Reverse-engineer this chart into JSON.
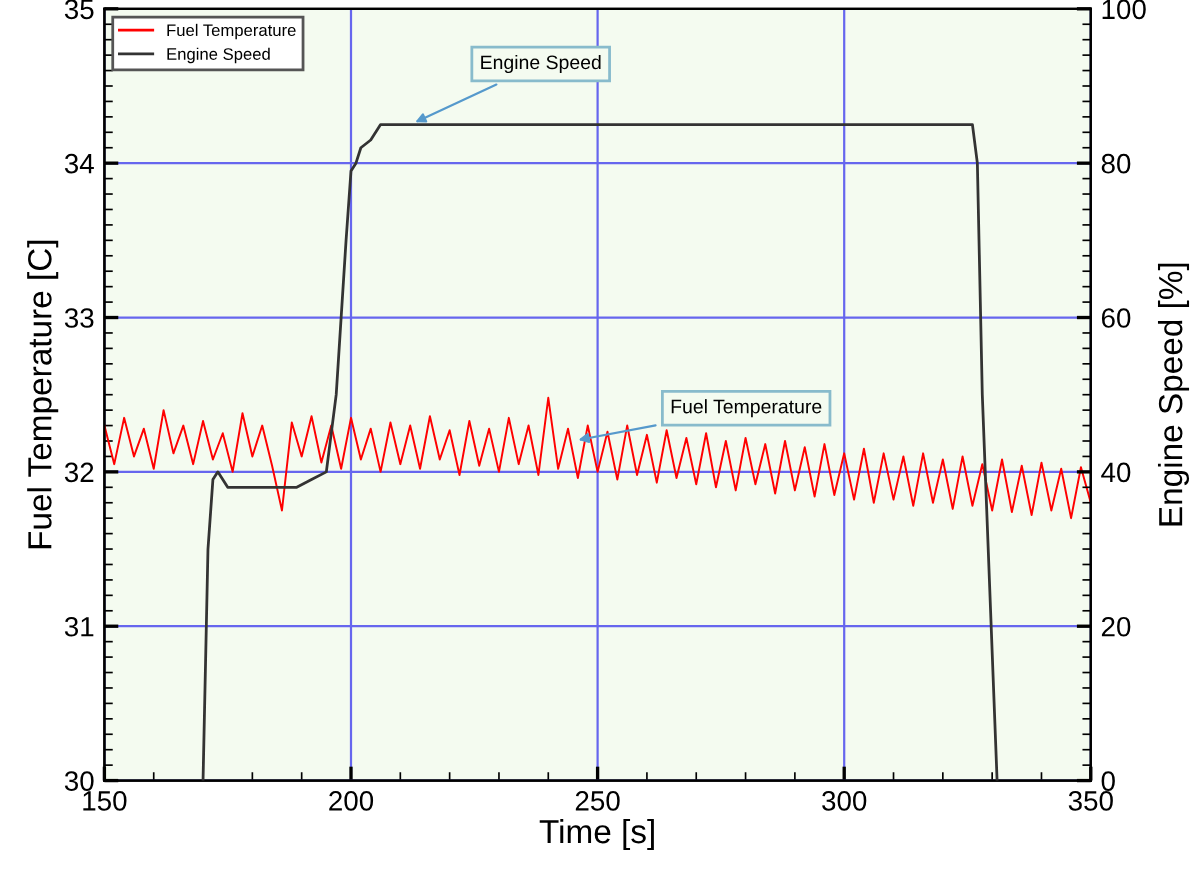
{
  "chart_data": {
    "type": "line",
    "xlabel": "Time [s]",
    "ylabel": "Fuel Temperature [C]",
    "y2label": "Engine Speed [%]",
    "series": [
      {
        "name": "Fuel Temperature",
        "color": "#ff0000",
        "x": [
          150,
          152,
          154,
          156,
          158,
          160,
          162,
          164,
          166,
          168,
          170,
          172,
          174,
          176,
          178,
          180,
          182,
          184,
          186,
          188,
          190,
          192,
          194,
          196,
          198,
          200,
          202,
          204,
          206,
          208,
          210,
          212,
          214,
          216,
          218,
          220,
          222,
          224,
          226,
          228,
          230,
          232,
          234,
          236,
          238,
          240,
          242,
          244,
          246,
          248,
          250,
          252,
          254,
          256,
          258,
          260,
          262,
          264,
          266,
          268,
          270,
          272,
          274,
          276,
          278,
          280,
          282,
          284,
          286,
          288,
          290,
          292,
          294,
          296,
          298,
          300,
          302,
          304,
          306,
          308,
          310,
          312,
          314,
          316,
          318,
          320,
          322,
          324,
          326,
          328,
          330,
          332,
          334,
          336,
          338,
          340,
          342,
          344,
          346,
          348,
          350
        ],
        "values": [
          32.3,
          32.05,
          32.35,
          32.1,
          32.28,
          32.02,
          32.4,
          32.12,
          32.3,
          32.05,
          32.33,
          32.08,
          32.25,
          32.0,
          32.38,
          32.1,
          32.3,
          32.04,
          31.75,
          32.32,
          32.1,
          32.36,
          32.06,
          32.3,
          32.02,
          32.35,
          32.08,
          32.28,
          32.0,
          32.32,
          32.05,
          32.3,
          32.02,
          32.36,
          32.08,
          32.27,
          31.98,
          32.33,
          32.04,
          32.28,
          32.0,
          32.35,
          32.05,
          32.3,
          31.98,
          32.48,
          32.02,
          32.28,
          31.96,
          32.3,
          32.0,
          32.26,
          31.95,
          32.3,
          31.98,
          32.24,
          31.93,
          32.27,
          31.96,
          32.22,
          31.92,
          32.25,
          31.9,
          32.2,
          31.88,
          32.22,
          31.92,
          32.18,
          31.86,
          32.2,
          31.88,
          32.16,
          31.84,
          32.18,
          31.85,
          32.12,
          31.82,
          32.15,
          31.8,
          32.12,
          31.82,
          32.1,
          31.78,
          32.12,
          31.8,
          32.08,
          31.76,
          32.1,
          31.78,
          32.05,
          31.75,
          32.08,
          31.74,
          32.04,
          31.72,
          32.06,
          31.75,
          32.02,
          31.7,
          32.03,
          31.8
        ]
      },
      {
        "name": "Engine Speed",
        "color": "#333333",
        "axis": "y2",
        "x": [
          170,
          171,
          172,
          173,
          175,
          187,
          189,
          192,
          195,
          197,
          199,
          200,
          201,
          202,
          204,
          206,
          215,
          326,
          327,
          328,
          331
        ],
        "values": [
          0,
          30,
          39,
          40,
          38,
          38,
          38,
          39,
          40,
          50,
          70,
          79,
          80,
          82,
          83,
          85,
          85,
          85,
          80,
          50,
          0
        ]
      }
    ],
    "xlim": [
      150,
      350
    ],
    "xticks": [
      150,
      200,
      250,
      300,
      350
    ],
    "ylim": [
      30,
      35
    ],
    "yticks": [
      30,
      31,
      32,
      33,
      34,
      35
    ],
    "y2lim": [
      0,
      100
    ],
    "y2ticks": [
      0,
      20,
      40,
      60,
      80,
      100
    ],
    "grid": true,
    "legend": "top left",
    "annotations": [
      {
        "text": "Engine Speed",
        "x": 212,
        "y": 34.25
      },
      {
        "text": "Fuel Temperature",
        "x": 245,
        "y": 32.2
      }
    ]
  }
}
